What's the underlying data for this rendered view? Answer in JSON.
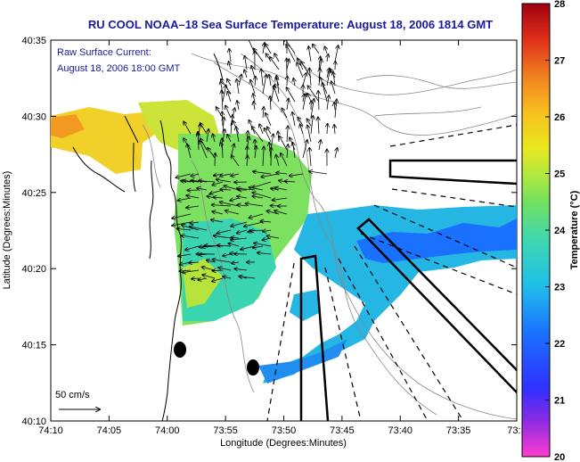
{
  "title": "RU COOL  NOAA–18  Sea Surface Temperature:  August 18, 2006 1814 GMT",
  "annotation": {
    "line1": "Raw Surface Current:",
    "line2": "August 18, 2006 18:00 GMT"
  },
  "scale_label": "50 cm/s",
  "x_axis": {
    "label": "Longitude (Degrees:Minutes)",
    "ticks": [
      "74:10",
      "74:05",
      "74:00",
      "73:55",
      "73:50",
      "73:45",
      "73:40",
      "73:35",
      "73:3"
    ]
  },
  "y_axis": {
    "label": "Latitude (Degrees:Minutes)",
    "ticks": [
      "40:35",
      "40:30",
      "40:25",
      "40:20",
      "40:15",
      "40:10"
    ]
  },
  "colorbar": {
    "label": "Temperature (°C)",
    "ticks": [
      "28",
      "27",
      "26",
      "25",
      "24",
      "23",
      "22",
      "21",
      "20"
    ],
    "min": 20,
    "max": 28
  },
  "colors": {
    "title": "#1a1a9c",
    "land_outline": "#000000",
    "bathymetry": "#888888"
  }
}
